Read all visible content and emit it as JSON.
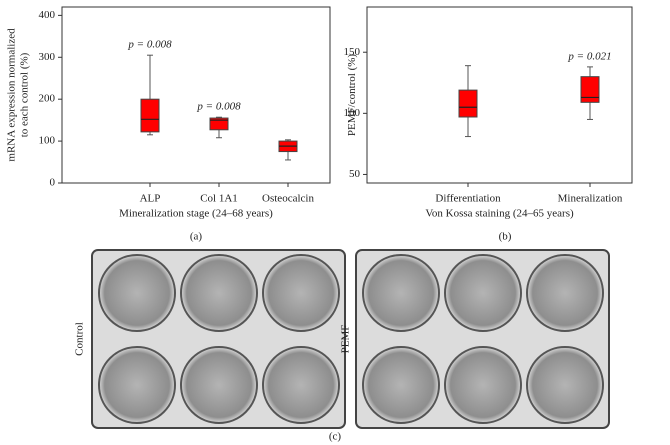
{
  "chart_data": [
    {
      "type": "box",
      "panel_label": "(a)",
      "xlabel": "Mineralization stage (24–68 years)",
      "ylabel": [
        "mRNA expression normalized",
        "to each control (%)"
      ],
      "categories": [
        "ALP",
        "Col 1A1",
        "Osteocalcin"
      ],
      "boxes": [
        {
          "min": 115,
          "q1": 122,
          "median": 152,
          "q3": 200,
          "max": 305
        },
        {
          "min": 108,
          "q1": 127,
          "median": 150,
          "q3": 155,
          "max": 157
        },
        {
          "min": 55,
          "q1": 75,
          "median": 88,
          "q3": 100,
          "max": 103
        }
      ],
      "annotations": [
        {
          "category": "ALP",
          "text": "p = 0.008"
        },
        {
          "category": "Col 1A1",
          "text": "p = 0.008"
        }
      ],
      "color": "#ff0000",
      "ylim": [
        0,
        420
      ],
      "yticks": [
        0,
        100,
        200,
        300,
        400
      ]
    },
    {
      "type": "box",
      "panel_label": "(b)",
      "xlabel": "Von Kossa staining (24–65 years)",
      "ylabel": [
        "PEMF/control (%)"
      ],
      "categories": [
        "Differentiation",
        "Mineralization"
      ],
      "boxes": [
        {
          "min": 81,
          "q1": 97,
          "median": 105,
          "q3": 119,
          "max": 139
        },
        {
          "min": 95,
          "q1": 109,
          "median": 113,
          "q3": 130,
          "max": 138
        }
      ],
      "annotations": [
        {
          "category": "Mineralization",
          "text": "p = 0.021"
        }
      ],
      "color": "#ff0000",
      "ylim": [
        43,
        187
      ],
      "yticks": [
        50,
        100,
        150
      ]
    }
  ],
  "images": {
    "panel_label": "(c)",
    "plates": [
      "Control",
      "PEMF"
    ]
  }
}
